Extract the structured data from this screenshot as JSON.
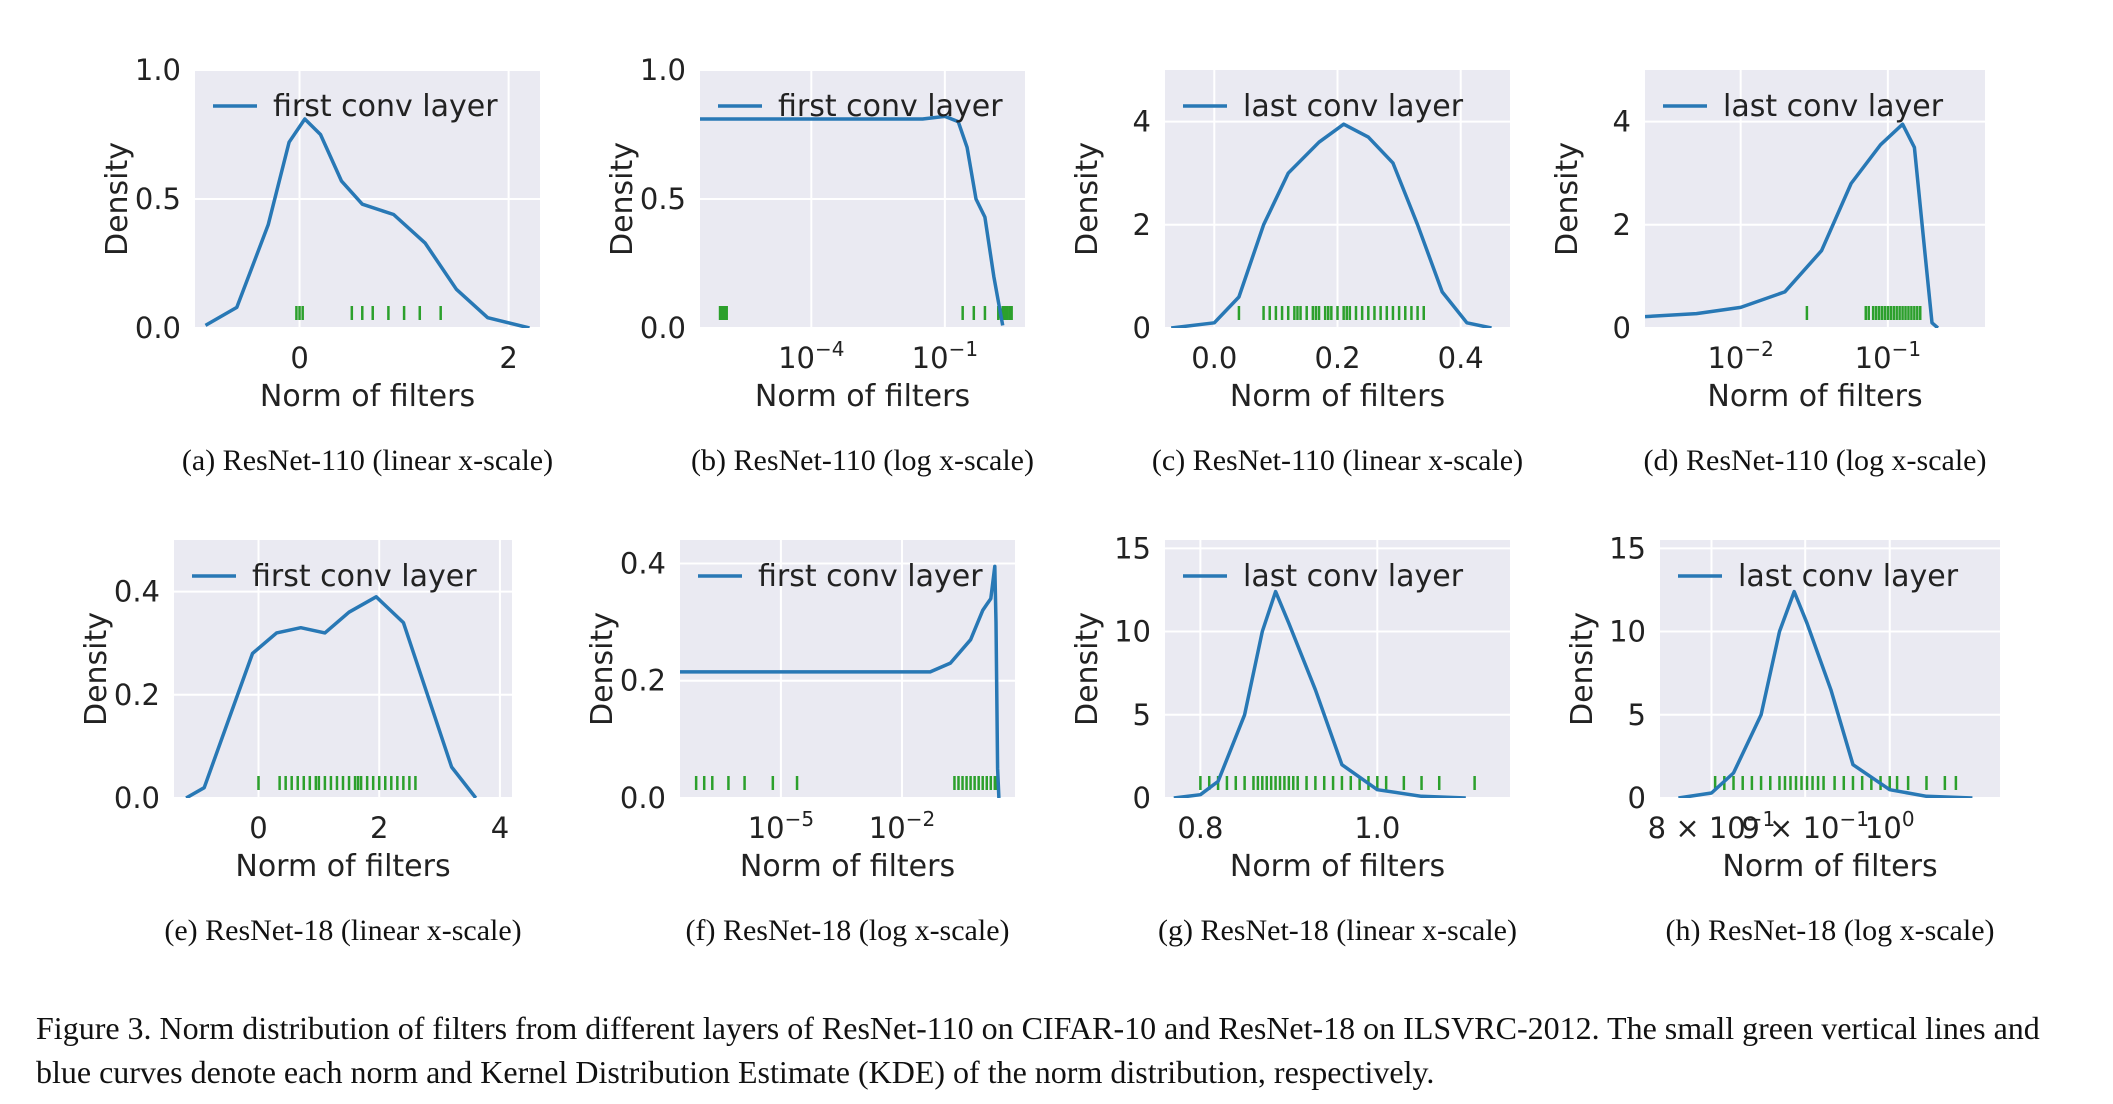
{
  "figure": {
    "caption": "Figure 3.   Norm distribution of filters from different layers of ResNet-110 on CIFAR-10 and ResNet-18 on ILSVRC-2012. The small green vertical lines and blue curves denote each norm and Kernel Distribution Estimate (KDE) of the norm distribution, respectively."
  },
  "colors": {
    "curve": "#2878b5",
    "rug": "#2ca02c",
    "panel_bg": "#eaeaf2",
    "grid": "#ffffff"
  },
  "chart_data": [
    {
      "type": "line",
      "subcaption": "(a)  ResNet-110 (linear x-scale)",
      "legend": "first conv layer",
      "xlabel": "Norm of filters",
      "ylabel": "Density",
      "xscale": "linear",
      "xlim": [
        -1.0,
        2.3
      ],
      "ylim": [
        0,
        1.0
      ],
      "xticks": [
        {
          "v": 0,
          "t": "0"
        },
        {
          "v": 2,
          "t": "2"
        }
      ],
      "yticks": [
        {
          "v": 0,
          "t": "0.0"
        },
        {
          "v": 0.5,
          "t": "0.5"
        },
        {
          "v": 1.0,
          "t": "1.0"
        }
      ],
      "curve": [
        [
          -0.9,
          0.01
        ],
        [
          -0.6,
          0.08
        ],
        [
          -0.3,
          0.4
        ],
        [
          -0.1,
          0.72
        ],
        [
          0.05,
          0.81
        ],
        [
          0.2,
          0.75
        ],
        [
          0.4,
          0.57
        ],
        [
          0.6,
          0.48
        ],
        [
          0.9,
          0.44
        ],
        [
          1.2,
          0.33
        ],
        [
          1.5,
          0.15
        ],
        [
          1.8,
          0.04
        ],
        [
          2.2,
          0.0
        ]
      ],
      "rug": [
        -0.03,
        0.0,
        0.03,
        0.5,
        0.6,
        0.7,
        0.85,
        1.0,
        1.15,
        1.35
      ]
    },
    {
      "type": "line",
      "subcaption": "(b)  ResNet-110 (log x-scale)",
      "legend": "first conv layer",
      "xlabel": "Norm of filters",
      "ylabel": "Density",
      "xscale": "log",
      "xlim": [
        -6.5,
        0.8
      ],
      "ylim": [
        0,
        1.0
      ],
      "xticks": [
        {
          "v": -4,
          "t": "10",
          "s": "−4"
        },
        {
          "v": -1,
          "t": "10",
          "s": "−1"
        }
      ],
      "yticks": [
        {
          "v": 0,
          "t": "0.0"
        },
        {
          "v": 0.5,
          "t": "0.5"
        },
        {
          "v": 1.0,
          "t": "1.0"
        }
      ],
      "curve": [
        [
          -6.5,
          0.81
        ],
        [
          -1.5,
          0.81
        ],
        [
          -1.0,
          0.82
        ],
        [
          -0.7,
          0.8
        ],
        [
          -0.5,
          0.7
        ],
        [
          -0.3,
          0.5
        ],
        [
          -0.1,
          0.43
        ],
        [
          0.1,
          0.2
        ],
        [
          0.3,
          0.01
        ]
      ],
      "rug": [
        -6.05,
        -6.0,
        -5.95,
        -5.9,
        -0.6,
        -0.35,
        -0.1,
        0.2,
        0.3,
        0.35,
        0.4,
        0.45,
        0.5
      ]
    },
    {
      "type": "line",
      "subcaption": "(c)  ResNet-110 (linear x-scale)",
      "legend": "last conv layer",
      "xlabel": "Norm of filters",
      "ylabel": "Density",
      "xscale": "linear",
      "xlim": [
        -0.08,
        0.48
      ],
      "ylim": [
        0,
        5.0
      ],
      "xticks": [
        {
          "v": 0,
          "t": "0.0"
        },
        {
          "v": 0.2,
          "t": "0.2"
        },
        {
          "v": 0.4,
          "t": "0.4"
        }
      ],
      "yticks": [
        {
          "v": 0,
          "t": "0"
        },
        {
          "v": 2,
          "t": "2"
        },
        {
          "v": 4,
          "t": "4"
        }
      ],
      "curve": [
        [
          -0.07,
          0.0
        ],
        [
          0.0,
          0.1
        ],
        [
          0.04,
          0.6
        ],
        [
          0.08,
          2.0
        ],
        [
          0.12,
          3.0
        ],
        [
          0.17,
          3.6
        ],
        [
          0.21,
          3.95
        ],
        [
          0.25,
          3.7
        ],
        [
          0.29,
          3.2
        ],
        [
          0.33,
          2.0
        ],
        [
          0.37,
          0.7
        ],
        [
          0.41,
          0.1
        ],
        [
          0.45,
          0.0
        ]
      ],
      "rug": [
        0.04,
        0.08,
        0.09,
        0.1,
        0.11,
        0.12,
        0.13,
        0.135,
        0.14,
        0.15,
        0.16,
        0.165,
        0.17,
        0.18,
        0.185,
        0.19,
        0.2,
        0.21,
        0.215,
        0.22,
        0.23,
        0.24,
        0.25,
        0.26,
        0.27,
        0.28,
        0.29,
        0.3,
        0.31,
        0.32,
        0.33,
        0.34
      ]
    },
    {
      "type": "line",
      "subcaption": "(d)  ResNet-110 (log x-scale)",
      "legend": "last conv layer",
      "xlabel": "Norm of filters",
      "ylabel": "Density",
      "xscale": "log",
      "xlim": [
        -2.65,
        -0.34
      ],
      "ylim": [
        0,
        5.0
      ],
      "xticks": [
        {
          "v": -2,
          "t": "10",
          "s": "−2"
        },
        {
          "v": -1,
          "t": "10",
          "s": "−1"
        }
      ],
      "yticks": [
        {
          "v": 0,
          "t": "0"
        },
        {
          "v": 2,
          "t": "2"
        },
        {
          "v": 4,
          "t": "4"
        }
      ],
      "curve": [
        [
          -2.65,
          0.22
        ],
        [
          -2.3,
          0.28
        ],
        [
          -2.0,
          0.4
        ],
        [
          -1.7,
          0.7
        ],
        [
          -1.45,
          1.5
        ],
        [
          -1.25,
          2.8
        ],
        [
          -1.05,
          3.55
        ],
        [
          -0.9,
          3.95
        ],
        [
          -0.82,
          3.5
        ],
        [
          -0.75,
          1.5
        ],
        [
          -0.7,
          0.1
        ],
        [
          -0.66,
          0.0
        ]
      ],
      "rug": [
        -1.55,
        -1.15,
        -1.13,
        -1.1,
        -1.08,
        -1.06,
        -1.04,
        -1.02,
        -1.0,
        -0.98,
        -0.96,
        -0.94,
        -0.92,
        -0.9,
        -0.88,
        -0.86,
        -0.84,
        -0.82,
        -0.8,
        -0.78
      ]
    },
    {
      "type": "line",
      "subcaption": "(e)  ResNet-18 (linear x-scale)",
      "legend": "first conv layer",
      "xlabel": "Norm of filters",
      "ylabel": "Density",
      "xscale": "linear",
      "xlim": [
        -1.4,
        4.2
      ],
      "ylim": [
        0,
        0.5
      ],
      "xticks": [
        {
          "v": 0,
          "t": "0"
        },
        {
          "v": 2,
          "t": "2"
        },
        {
          "v": 4,
          "t": "4"
        }
      ],
      "yticks": [
        {
          "v": 0,
          "t": "0.0"
        },
        {
          "v": 0.2,
          "t": "0.2"
        },
        {
          "v": 0.4,
          "t": "0.4"
        }
      ],
      "curve": [
        [
          -1.2,
          0.0
        ],
        [
          -0.9,
          0.02
        ],
        [
          -0.5,
          0.15
        ],
        [
          -0.1,
          0.28
        ],
        [
          0.3,
          0.32
        ],
        [
          0.7,
          0.33
        ],
        [
          1.1,
          0.32
        ],
        [
          1.5,
          0.36
        ],
        [
          1.95,
          0.39
        ],
        [
          2.4,
          0.34
        ],
        [
          2.8,
          0.2
        ],
        [
          3.2,
          0.06
        ],
        [
          3.6,
          0.0
        ]
      ],
      "rug": [
        0.0,
        0.35,
        0.45,
        0.55,
        0.65,
        0.75,
        0.85,
        0.95,
        1.0,
        1.1,
        1.2,
        1.3,
        1.4,
        1.5,
        1.6,
        1.65,
        1.7,
        1.8,
        1.9,
        2.0,
        2.1,
        2.2,
        2.3,
        2.4,
        2.5,
        2.6
      ]
    },
    {
      "type": "line",
      "subcaption": "(f)  ResNet-18 (log x-scale)",
      "legend": "first conv layer",
      "xlabel": "Norm of filters",
      "ylabel": "Density",
      "xscale": "log",
      "xlim": [
        -7.5,
        0.8
      ],
      "ylim": [
        0,
        0.44
      ],
      "xticks": [
        {
          "v": -5,
          "t": "10",
          "s": "−5"
        },
        {
          "v": -2,
          "t": "10",
          "s": "−2"
        }
      ],
      "yticks": [
        {
          "v": 0,
          "t": "0.0"
        },
        {
          "v": 0.2,
          "t": "0.2"
        },
        {
          "v": 0.4,
          "t": "0.4"
        }
      ],
      "curve": [
        [
          -7.5,
          0.215
        ],
        [
          -1.3,
          0.215
        ],
        [
          -0.8,
          0.23
        ],
        [
          -0.3,
          0.27
        ],
        [
          0.0,
          0.32
        ],
        [
          0.1,
          0.33
        ],
        [
          0.2,
          0.34
        ],
        [
          0.3,
          0.395
        ],
        [
          0.33,
          0.3
        ],
        [
          0.37,
          0.05
        ],
        [
          0.4,
          0.0
        ]
      ],
      "rug": [
        -7.1,
        -6.9,
        -6.7,
        -6.3,
        -5.9,
        -5.2,
        -4.6,
        -0.7,
        -0.6,
        -0.5,
        -0.4,
        -0.3,
        -0.2,
        -0.1,
        0.0,
        0.1,
        0.2,
        0.3,
        0.35
      ]
    },
    {
      "type": "line",
      "subcaption": "(g)  ResNet-18 (linear x-scale)",
      "legend": "last conv layer",
      "xlabel": "Norm of filters",
      "ylabel": "Density",
      "xscale": "linear",
      "xlim": [
        0.76,
        1.15
      ],
      "ylim": [
        0,
        15.5
      ],
      "xticks": [
        {
          "v": 0.8,
          "t": "0.8"
        },
        {
          "v": 1.0,
          "t": "1.0"
        }
      ],
      "yticks": [
        {
          "v": 0,
          "t": "0"
        },
        {
          "v": 5,
          "t": "5"
        },
        {
          "v": 10,
          "t": "10"
        },
        {
          "v": 15,
          "t": "15"
        }
      ],
      "curve": [
        [
          0.77,
          0.0
        ],
        [
          0.8,
          0.2
        ],
        [
          0.82,
          1.0
        ],
        [
          0.85,
          5.0
        ],
        [
          0.87,
          10.0
        ],
        [
          0.885,
          12.4
        ],
        [
          0.9,
          10.5
        ],
        [
          0.93,
          6.5
        ],
        [
          0.96,
          2.0
        ],
        [
          1.0,
          0.5
        ],
        [
          1.05,
          0.1
        ],
        [
          1.1,
          0.0
        ]
      ],
      "rug": [
        0.8,
        0.81,
        0.82,
        0.83,
        0.84,
        0.85,
        0.86,
        0.865,
        0.87,
        0.875,
        0.88,
        0.885,
        0.89,
        0.895,
        0.9,
        0.905,
        0.91,
        0.92,
        0.93,
        0.94,
        0.95,
        0.96,
        0.97,
        0.98,
        0.99,
        1.0,
        1.01,
        1.03,
        1.05,
        1.07,
        1.11
      ]
    },
    {
      "type": "line",
      "subcaption": "(h)  ResNet-18 (log x-scale)",
      "legend": "last conv layer",
      "xlabel": "Norm of filters",
      "ylabel": "Density",
      "xscale": "log",
      "xlim": [
        -0.125,
        0.06
      ],
      "ylim": [
        0,
        15.5
      ],
      "xticks": [
        {
          "v": -0.097,
          "t": "8 × 10",
          "s": "−1"
        },
        {
          "v": -0.046,
          "t": "9 × 10",
          "s": "−1"
        },
        {
          "v": 0,
          "t": "10",
          "s": "0"
        }
      ],
      "yticks": [
        {
          "v": 0,
          "t": "0"
        },
        {
          "v": 5,
          "t": "5"
        },
        {
          "v": 10,
          "t": "10"
        },
        {
          "v": 15,
          "t": "15"
        }
      ],
      "curve": [
        [
          -0.115,
          0.0
        ],
        [
          -0.097,
          0.3
        ],
        [
          -0.085,
          1.5
        ],
        [
          -0.07,
          5.0
        ],
        [
          -0.06,
          10.0
        ],
        [
          -0.052,
          12.4
        ],
        [
          -0.045,
          10.5
        ],
        [
          -0.032,
          6.5
        ],
        [
          -0.02,
          2.0
        ],
        [
          0.0,
          0.5
        ],
        [
          0.02,
          0.1
        ],
        [
          0.045,
          0.0
        ]
      ],
      "rug": [
        -0.095,
        -0.09,
        -0.085,
        -0.08,
        -0.075,
        -0.07,
        -0.065,
        -0.06,
        -0.057,
        -0.054,
        -0.051,
        -0.048,
        -0.045,
        -0.042,
        -0.039,
        -0.036,
        -0.03,
        -0.025,
        -0.02,
        -0.015,
        -0.01,
        -0.005,
        0.0,
        0.004,
        0.01,
        0.02,
        0.03,
        0.036
      ]
    }
  ]
}
